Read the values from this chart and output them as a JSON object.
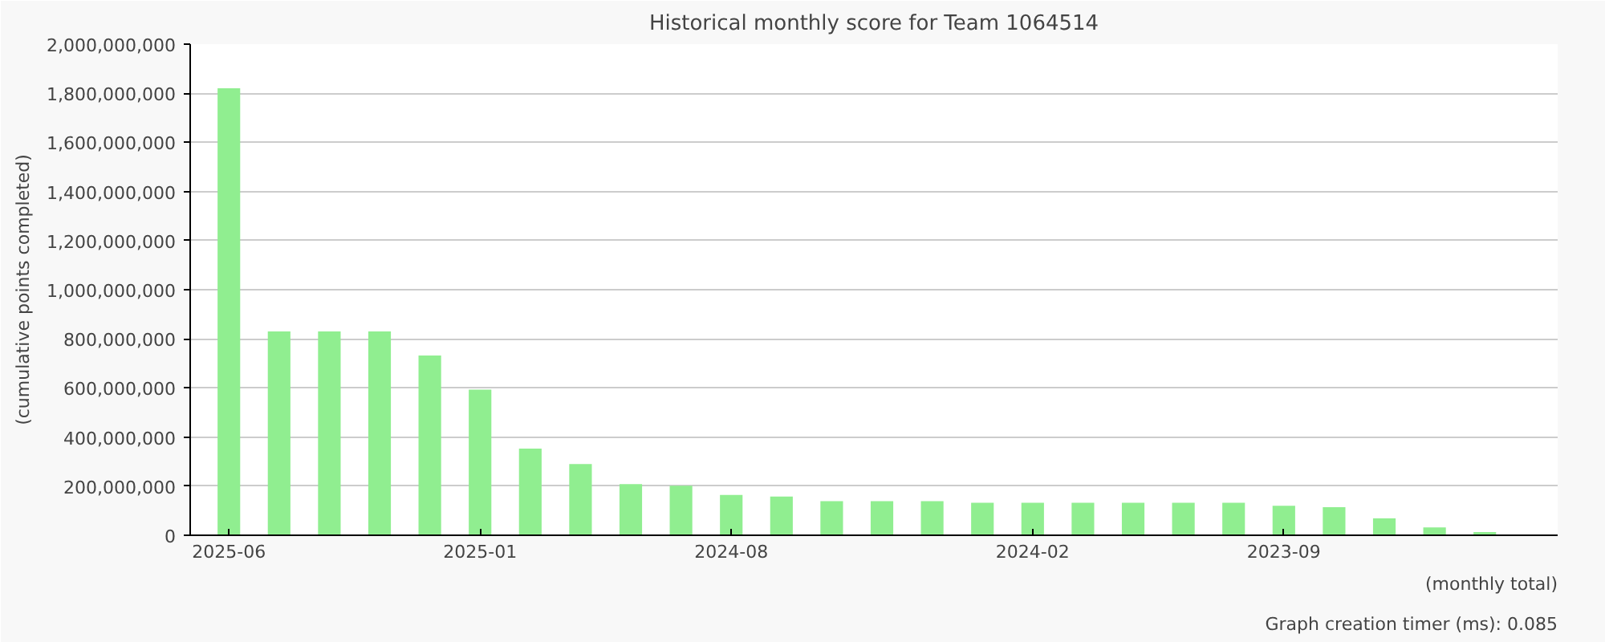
{
  "chart_data": {
    "type": "bar",
    "title": "Historical monthly score for Team 1064514",
    "ylabel": "(cumulative points completed)",
    "xlabel": "(monthly total)",
    "annotations": [
      "Graph creation timer (ms): 0.085"
    ],
    "categories": [
      "2025-06",
      null,
      null,
      null,
      null,
      "2025-01",
      null,
      null,
      null,
      null,
      "2024-08",
      null,
      null,
      null,
      null,
      null,
      "2024-02",
      null,
      null,
      null,
      null,
      "2023-09",
      null,
      null,
      null,
      null
    ],
    "values": [
      1820000000,
      830000000,
      830000000,
      830000000,
      732000000,
      593000000,
      353000000,
      290000000,
      208000000,
      202000000,
      164000000,
      158000000,
      139000000,
      139000000,
      139000000,
      132000000,
      132000000,
      132000000,
      132000000,
      132000000,
      132000000,
      120000000,
      114000000,
      69000000,
      32000000,
      13000000
    ],
    "color": "#90ee90",
    "ylim": [
      0,
      2000000000
    ],
    "yticks": [
      0,
      {
        "value": 200000000,
        "label": "200,000,000"
      },
      {
        "value": 400000000,
        "label": "400,000,000"
      },
      {
        "value": 600000000,
        "label": "600,000,000"
      },
      {
        "value": 800000000,
        "label": "800,000,000"
      },
      {
        "value": 1000000000,
        "label": "1,000,000,000"
      },
      {
        "value": 1200000000,
        "label": "1,200,000,000"
      },
      {
        "value": 1400000000,
        "label": "1,400,000,000"
      },
      {
        "value": 1600000000,
        "label": "1,600,000,000"
      },
      {
        "value": 1800000000,
        "label": "1,800,000,000"
      },
      {
        "value": 2000000000,
        "label": "2,000,000,000"
      }
    ],
    "grid": "y"
  }
}
